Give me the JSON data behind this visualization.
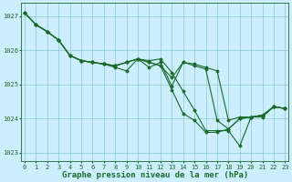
{
  "background_color": "#cceeff",
  "grid_color": "#88cccc",
  "line_color": "#1a6b2a",
  "xlabel": "Graphe pression niveau de la mer (hPa)",
  "ylim": [
    1022.75,
    1027.4
  ],
  "xlim": [
    -0.3,
    23.3
  ],
  "yticks": [
    1023,
    1024,
    1025,
    1026,
    1027
  ],
  "xticks": [
    0,
    1,
    2,
    3,
    4,
    5,
    6,
    7,
    8,
    9,
    10,
    11,
    12,
    13,
    14,
    15,
    16,
    17,
    18,
    19,
    20,
    21,
    22,
    23
  ],
  "lines": [
    [
      1027.1,
      1026.75,
      1026.55,
      1026.3,
      1025.85,
      1025.7,
      1025.65,
      1025.6,
      1025.55,
      1025.65,
      1025.75,
      1025.7,
      1025.75,
      1025.35,
      1024.8,
      1024.25,
      1023.65,
      1023.65,
      1023.65,
      1023.2,
      1024.05,
      1024.05,
      1024.35,
      1024.3
    ],
    [
      1027.1,
      1026.75,
      1026.55,
      1026.3,
      1025.85,
      1025.7,
      1025.65,
      1025.6,
      1025.55,
      1025.65,
      1025.75,
      1025.65,
      1025.55,
      1025.2,
      1025.65,
      1025.6,
      1025.5,
      1025.4,
      1023.95,
      1024.05,
      1024.05,
      1024.1,
      1024.35,
      1024.3
    ],
    [
      1027.1,
      1026.75,
      1026.55,
      1026.3,
      1025.85,
      1025.7,
      1025.65,
      1025.6,
      1025.55,
      1025.65,
      1025.75,
      1025.65,
      1025.55,
      1024.85,
      1024.15,
      1023.95,
      1023.6,
      1023.6,
      1023.7,
      1024.0,
      1024.05,
      1024.1,
      1024.35,
      1024.3
    ],
    [
      1027.1,
      1026.75,
      1026.55,
      1026.3,
      1025.85,
      1025.7,
      1025.65,
      1025.6,
      1025.5,
      1025.4,
      1025.75,
      1025.5,
      1025.65,
      1024.95,
      1025.65,
      1025.55,
      1025.45,
      1023.95,
      1023.7,
      1024.0,
      1024.05,
      1024.1,
      1024.35,
      1024.3
    ]
  ],
  "marker": "D",
  "markersize": 1.5,
  "linewidth": 0.8,
  "tick_fontsize": 5.0,
  "xlabel_fontsize": 6.5,
  "xlabel_fontweight": "bold"
}
